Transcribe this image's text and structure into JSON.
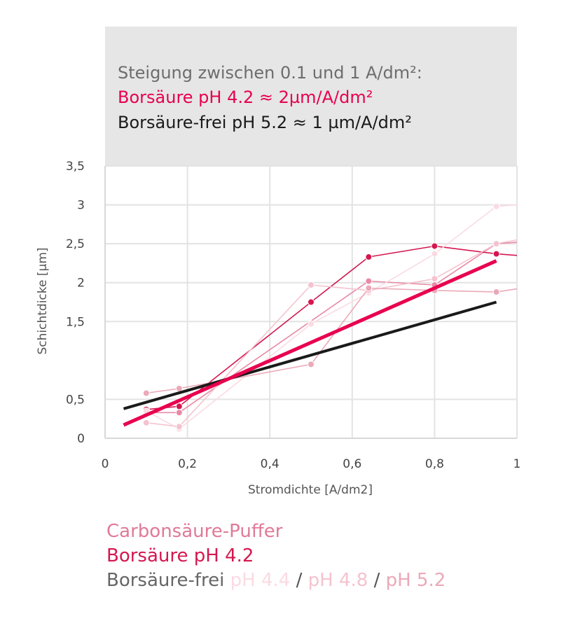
{
  "header": {
    "line1": "Steigung zwischen 0.1 und 1 A/dm²:",
    "line2": "Borsäure pH 4.2 ≈ 2µm/A/dm²",
    "line3": "Borsäure-frei pH 5.2 ≈ 1 µm/A/dm²",
    "colors": {
      "line1": "#6d6d6d",
      "line2": "#e8004f",
      "line3": "#1a1a1a",
      "background": "#e6e6e6"
    }
  },
  "legend": {
    "carbon": "Carbonsäure-Puffer",
    "boric": "Borsäure pH 4.2",
    "free": "Borsäure-frei",
    "ph44": "pH 4.4",
    "ph48": "pH 4.8",
    "ph52": "pH 5.2",
    "sep": "/"
  },
  "chart_data": {
    "type": "line",
    "xlabel": "Stromdichte [A/dm2]",
    "ylabel": "Schichtdicke [µm]",
    "xlim": [
      0,
      1
    ],
    "ylim": [
      0,
      3.5
    ],
    "x_ticks": [
      "0",
      "0,2",
      "0,4",
      "0,6",
      "0,8",
      "1"
    ],
    "y_ticks": [
      "0",
      "0,5",
      "1,5",
      "2",
      "2,5",
      "3",
      "3,5"
    ],
    "grid": true,
    "series": [
      {
        "name": "Carbonsäure-Puffer",
        "color": "#e88aa6",
        "width": 1.6,
        "marker": true,
        "x": [
          0.1,
          0.18,
          0.64,
          0.8,
          0.95,
          1.0
        ],
        "y": [
          0.33,
          0.33,
          2.02,
          1.97,
          2.5,
          2.52
        ]
      },
      {
        "name": "Borsäure pH 4.2",
        "color": "#d4174f",
        "width": 1.6,
        "marker": true,
        "x": [
          0.1,
          0.18,
          0.5,
          0.64,
          0.8,
          0.95,
          1.0
        ],
        "y": [
          0.37,
          0.41,
          1.75,
          2.33,
          2.47,
          2.37,
          2.35
        ]
      },
      {
        "name": "pH 4.4",
        "color": "#fadbe3",
        "width": 1.6,
        "marker": true,
        "x": [
          0.1,
          0.18,
          0.5,
          0.64,
          0.8,
          0.95,
          1.0
        ],
        "y": [
          0.35,
          0.12,
          1.47,
          1.87,
          2.37,
          2.98,
          3.0
        ]
      },
      {
        "name": "pH 4.8",
        "color": "#f4c3cf",
        "width": 1.6,
        "marker": true,
        "x": [
          0.1,
          0.18,
          0.5,
          0.64,
          0.8,
          0.95,
          1.0
        ],
        "y": [
          0.2,
          0.15,
          1.97,
          1.9,
          2.05,
          2.5,
          2.55
        ]
      },
      {
        "name": "pH 5.2",
        "color": "#eba9b8",
        "width": 1.6,
        "marker": true,
        "x": [
          0.1,
          0.18,
          0.5,
          0.64,
          0.8,
          0.95,
          1.0
        ],
        "y": [
          0.58,
          0.64,
          0.95,
          1.93,
          1.9,
          1.88,
          1.92
        ]
      },
      {
        "name": "Borsäure-frei pH 5.2",
        "color": "#1a1a1a",
        "width": 4,
        "marker": false,
        "x": [
          0.045,
          0.95
        ],
        "y": [
          0.38,
          1.75
        ]
      },
      {
        "name": "Borsäure pH 4.2",
        "color": "#e8004f",
        "width": 5,
        "marker": false,
        "x": [
          0.045,
          0.95
        ],
        "y": [
          0.17,
          2.28
        ]
      }
    ]
  }
}
